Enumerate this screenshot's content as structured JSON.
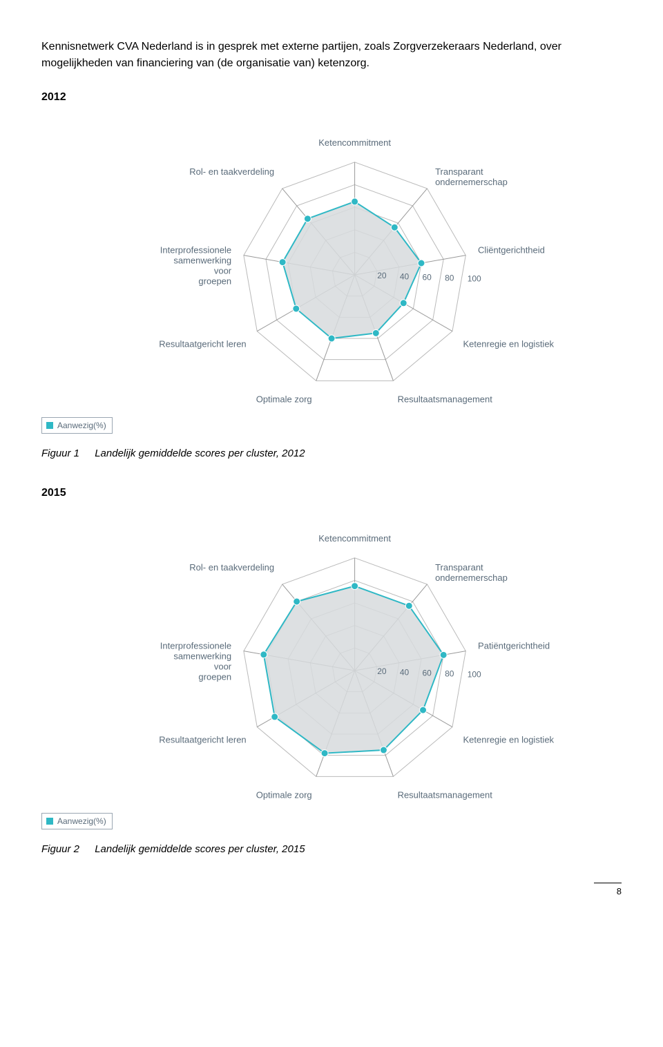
{
  "intro_text": "Kennisnetwerk CVA Nederland is in gesprek met externe partijen, zoals Zorgverzekeraars Nederland, over mogelijkheden van financiering van (de organisatie van) ketenzorg.",
  "page_number": "8",
  "chart2012": {
    "heading": "2012",
    "caption_fig": "Figuur 1",
    "caption_text": "Landelijk gemiddelde scores per cluster, 2012",
    "type": "radar",
    "axes": [
      "Ketencommitment",
      "Transparant ondernemerschap",
      "Cliëntgerichtheid",
      "Ketenregie en logistiek",
      "Resultaatsmanagement",
      "Optimale zorg",
      "Resultaatgericht leren",
      "Interprofessionele samenwerking voor groepen",
      "Rol- en taakverdeling"
    ],
    "values": [
      65,
      55,
      60,
      50,
      55,
      60,
      60,
      65,
      65
    ],
    "max": 100,
    "grid_ticks": [
      20,
      40,
      60,
      80,
      100
    ],
    "tick_labels": [
      20,
      40,
      60,
      80,
      100
    ],
    "colors": {
      "grid": "#b9b9b9",
      "axis": "#b9b9b9",
      "series_stroke": "#2fb8c5",
      "series_fill": "#d7dadd",
      "series_fill_opacity": 0.85,
      "marker_fill": "#2fb8c5",
      "label": "#5a6b7a",
      "background": "#ffffff"
    },
    "marker_radius": 5,
    "legend_label": "Aanwezig(%)",
    "legend_swatch": "#2fb8c5",
    "label_fontsize": 13,
    "tick_fontsize": 12
  },
  "chart2015": {
    "heading": "2015",
    "caption_fig": "Figuur 2",
    "caption_text": "Landelijk gemiddelde scores per cluster, 2015",
    "type": "radar",
    "axes": [
      "Ketencommitment",
      "Transparant ondernemerschap",
      "Patiëntgerichtheid",
      "Ketenregie en logistiek",
      "Resultaatsmanagement",
      "Optimale zorg",
      "Resultaatgericht leren",
      "Interprofessionele samenwerking voor groepen",
      "Rol- en taakverdeling"
    ],
    "values": [
      75,
      75,
      80,
      70,
      75,
      78,
      82,
      82,
      80
    ],
    "max": 100,
    "grid_ticks": [
      20,
      40,
      60,
      80,
      100
    ],
    "tick_labels": [
      20,
      40,
      60,
      80,
      100
    ],
    "colors": {
      "grid": "#b9b9b9",
      "axis": "#b9b9b9",
      "series_stroke": "#2fb8c5",
      "series_fill": "#d7dadd",
      "series_fill_opacity": 0.85,
      "marker_fill": "#2fb8c5",
      "label": "#5a6b7a",
      "background": "#ffffff"
    },
    "marker_radius": 5,
    "legend_label": "Aanwezig(%)",
    "legend_swatch": "#2fb8c5",
    "label_fontsize": 13,
    "tick_fontsize": 12
  }
}
